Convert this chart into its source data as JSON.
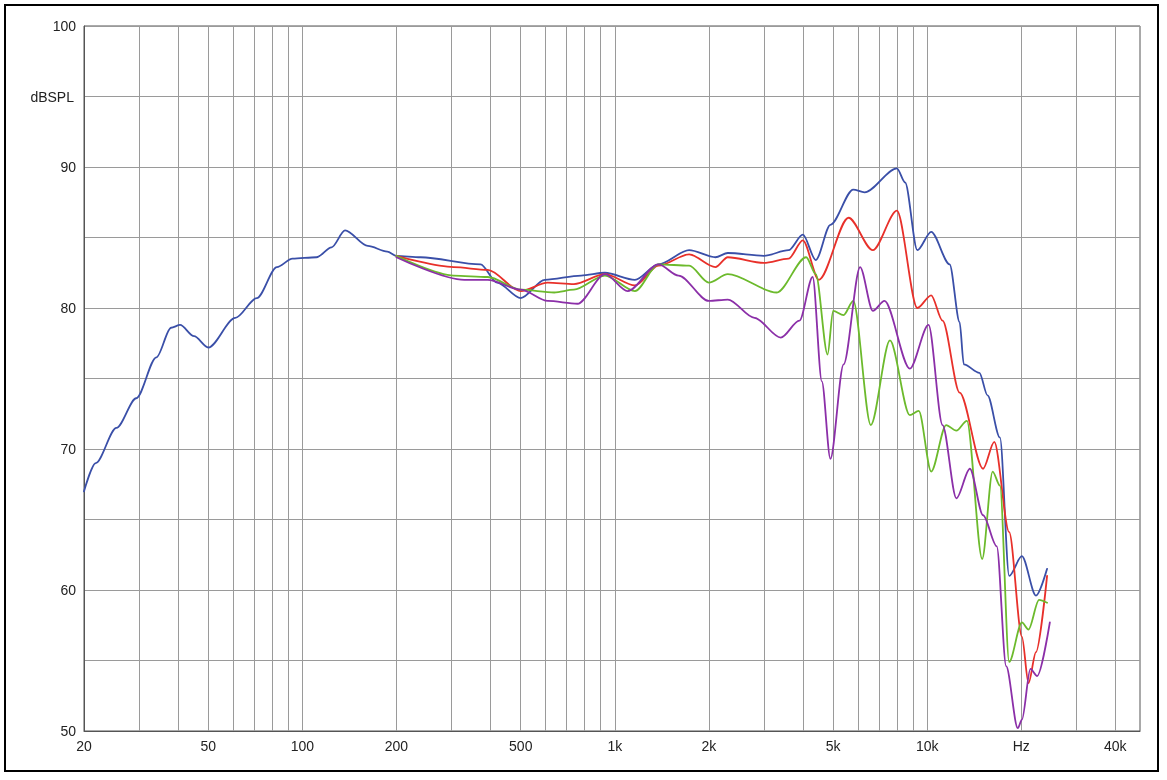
{
  "chart_data": {
    "type": "line",
    "ylabel": "dBSPL",
    "log": "x",
    "grid": true,
    "marker": "none",
    "line_style": "solid",
    "xlim": [
      20,
      48000
    ],
    "ylim": [
      50,
      100
    ],
    "xticks": [
      {
        "value": 20,
        "label": "20"
      },
      {
        "value": 30,
        "label": null
      },
      {
        "value": 40,
        "label": null
      },
      {
        "value": 50,
        "label": "50"
      },
      {
        "value": 60,
        "label": null
      },
      {
        "value": 70,
        "label": null
      },
      {
        "value": 80,
        "label": null
      },
      {
        "value": 90,
        "label": null
      },
      {
        "value": 100,
        "label": "100"
      },
      {
        "value": 200,
        "label": "200"
      },
      {
        "value": 300,
        "label": null
      },
      {
        "value": 400,
        "label": null
      },
      {
        "value": 500,
        "label": "500"
      },
      {
        "value": 600,
        "label": null
      },
      {
        "value": 700,
        "label": null
      },
      {
        "value": 800,
        "label": null
      },
      {
        "value": 900,
        "label": null
      },
      {
        "value": 1000,
        "label": "1k"
      },
      {
        "value": 2000,
        "label": "2k"
      },
      {
        "value": 3000,
        "label": null
      },
      {
        "value": 4000,
        "label": null
      },
      {
        "value": 5000,
        "label": "5k"
      },
      {
        "value": 6000,
        "label": null
      },
      {
        "value": 7000,
        "label": null
      },
      {
        "value": 8000,
        "label": null
      },
      {
        "value": 9000,
        "label": null
      },
      {
        "value": 10000,
        "label": "10k"
      },
      {
        "value": 20000,
        "label": "Hz"
      },
      {
        "value": 30000,
        "label": null
      },
      {
        "value": 40000,
        "label": "40k"
      }
    ],
    "yticks": [
      50,
      {
        "value": 55,
        "label": null
      },
      60,
      {
        "value": 65,
        "label": null
      },
      70,
      {
        "value": 75,
        "label": null
      },
      80,
      {
        "value": 85,
        "label": null
      },
      90,
      {
        "value": 95,
        "label": null
      },
      100
    ],
    "series": [
      {
        "color": "#3a4fa8",
        "x": [
          20,
          21.8,
          25.4,
          29.4,
          34.1,
          38,
          40.6,
          45,
          50,
          61,
          71.5,
          82.9,
          93,
          111,
          124,
          137,
          162,
          187,
          200,
          239,
          372,
          420,
          500,
          597,
          780,
          930,
          1160,
          1380,
          1730,
          2100,
          2300,
          3000,
          3600,
          4000,
          4400,
          4900,
          5800,
          6300,
          8000,
          8500,
          9300,
          10300,
          11800,
          12700,
          13100,
          14700,
          15600,
          17100,
          18300,
          20100,
          22300,
          24200
        ],
        "values": [
          67.0,
          69.0,
          71.5,
          73.6,
          76.5,
          78.6,
          78.8,
          78.0,
          77.2,
          79.3,
          80.7,
          82.9,
          83.5,
          83.6,
          84.3,
          85.5,
          84.4,
          84.0,
          83.7,
          83.6,
          83.1,
          81.8,
          80.7,
          82.0,
          82.3,
          82.5,
          82.0,
          83.1,
          84.1,
          83.6,
          83.9,
          83.7,
          84.1,
          85.2,
          83.4,
          85.9,
          88.4,
          88.2,
          89.9,
          88.9,
          84.1,
          85.4,
          83.1,
          79.0,
          76.0,
          75.4,
          73.8,
          70.8,
          61.0,
          62.4,
          59.6,
          61.5
        ]
      },
      {
        "color": "#e8302a",
        "x": [
          200,
          305,
          392,
          500,
          610,
          740,
          930,
          1160,
          1380,
          1730,
          2100,
          2300,
          3000,
          3600,
          4000,
          4500,
          5600,
          6700,
          8000,
          9300,
          10300,
          11200,
          12700,
          15100,
          16400,
          18300,
          20100,
          21100,
          22300,
          24200
        ],
        "values": [
          83.7,
          82.9,
          82.7,
          81.2,
          81.8,
          81.7,
          82.4,
          81.6,
          83.0,
          83.8,
          82.9,
          83.6,
          83.2,
          83.5,
          84.8,
          82.0,
          86.4,
          84.1,
          86.9,
          80.0,
          80.9,
          79.1,
          74.0,
          68.6,
          70.5,
          64.1,
          56.7,
          53.4,
          55.6,
          61.0
        ]
      },
      {
        "color": "#6cba2c",
        "x": [
          200,
          305,
          392,
          500,
          640,
          740,
          930,
          1160,
          1380,
          1730,
          2000,
          2300,
          3300,
          4100,
          4400,
          4800,
          5000,
          5400,
          5800,
          6600,
          7600,
          8800,
          9400,
          10300,
          11500,
          12400,
          13400,
          15000,
          16200,
          17100,
          18300,
          20100,
          21100,
          22800,
          24200
        ],
        "values": [
          83.7,
          82.3,
          82.2,
          81.3,
          81.1,
          81.3,
          82.3,
          81.2,
          83.1,
          83.0,
          81.8,
          82.4,
          81.1,
          83.6,
          82.4,
          76.7,
          79.8,
          79.5,
          80.5,
          71.7,
          77.7,
          72.4,
          72.7,
          68.4,
          71.7,
          71.3,
          72.0,
          62.2,
          68.4,
          67.4,
          54.9,
          57.7,
          57.2,
          59.3,
          59.1
        ]
      },
      {
        "color": "#8b2fa8",
        "x": [
          200,
          330,
          392,
          500,
          610,
          760,
          930,
          1100,
          1380,
          1600,
          2000,
          2300,
          2800,
          3400,
          3900,
          4300,
          4600,
          4900,
          5400,
          6100,
          6700,
          7300,
          8800,
          10100,
          11200,
          12400,
          13700,
          15100,
          16700,
          17900,
          19500,
          20100,
          21400,
          22500,
          24700
        ],
        "values": [
          83.6,
          82.0,
          82.0,
          81.3,
          80.5,
          80.3,
          82.4,
          81.2,
          83.1,
          82.3,
          80.5,
          80.6,
          79.3,
          77.9,
          79.1,
          82.2,
          74.8,
          69.3,
          76.0,
          82.9,
          79.8,
          80.5,
          75.7,
          78.8,
          71.7,
          66.5,
          68.6,
          65.3,
          63.1,
          54.6,
          50.2,
          50.8,
          54.4,
          53.9,
          57.7
        ]
      }
    ]
  }
}
